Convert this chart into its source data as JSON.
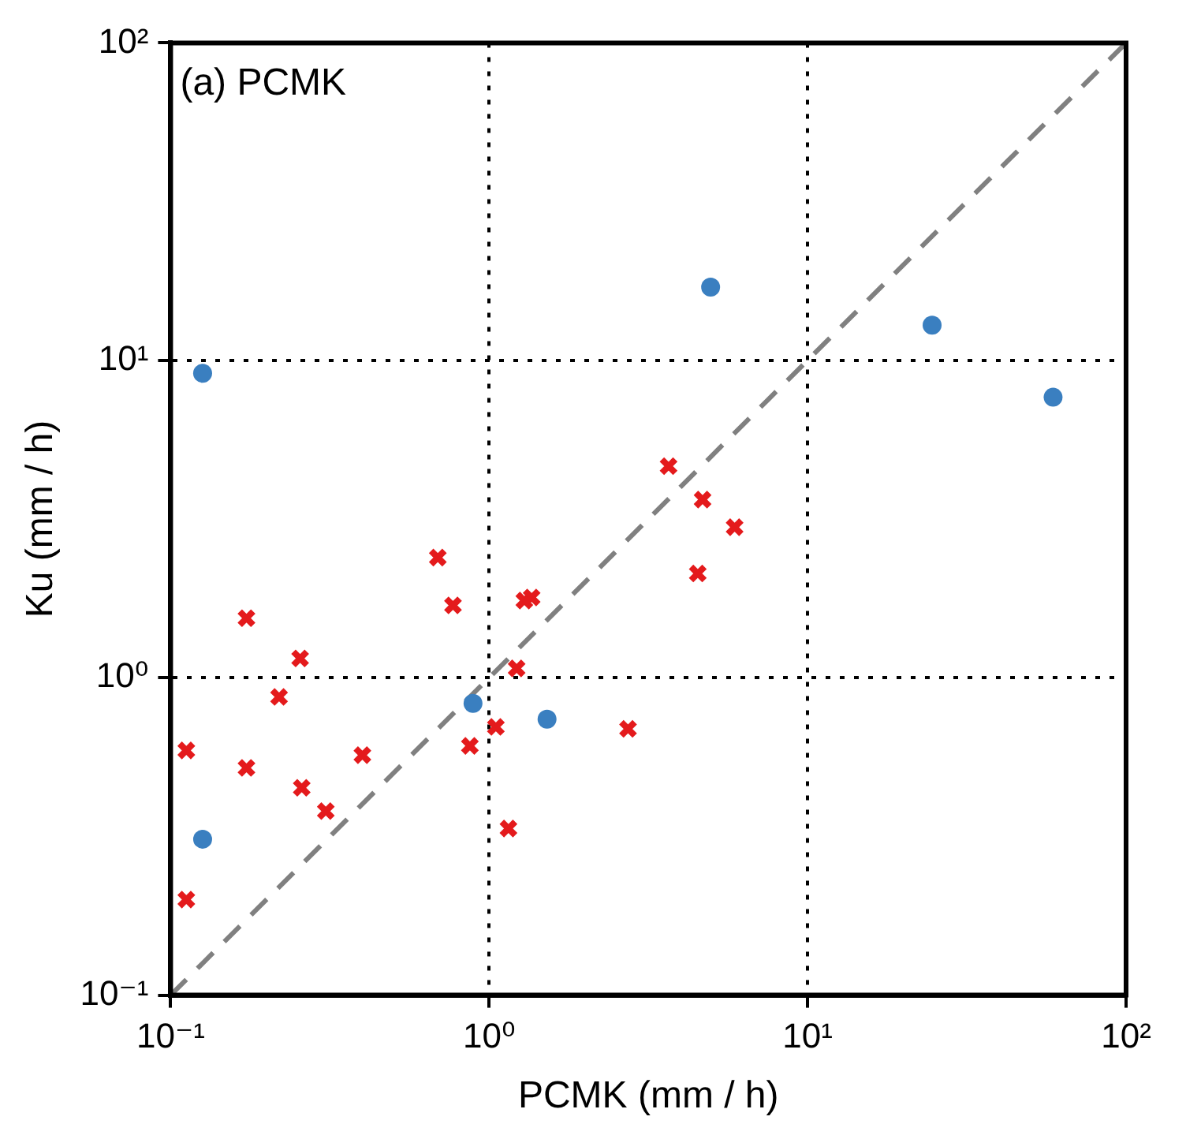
{
  "chart_data": {
    "type": "scatter",
    "xlabel": "PCMK (mm / h)",
    "ylabel": "Ku (mm / h)",
    "log": "xy",
    "grid": true,
    "legend": false,
    "xlim": [
      0.1,
      100
    ],
    "ylim": [
      0.1,
      100
    ],
    "xticks": [
      {
        "value": 0.1,
        "label": "10⁻¹"
      },
      {
        "value": 1,
        "label": "10⁰"
      },
      {
        "value": 10,
        "label": "10¹"
      },
      {
        "value": 100,
        "label": "10²"
      }
    ],
    "yticks": [
      {
        "value": 0.1,
        "label": "10⁻¹"
      },
      {
        "value": 1,
        "label": "10⁰"
      },
      {
        "value": 10,
        "label": "10¹"
      },
      {
        "value": 100,
        "label": "10²"
      }
    ],
    "annotations": [
      "(a) PCMK"
    ],
    "series": [
      {
        "type": "line",
        "color": "#808080",
        "line_style": "dashed",
        "marker": "none",
        "x": [
          0.1,
          100
        ],
        "values": [
          0.1,
          100
        ]
      },
      {
        "color": "#3a7fc0",
        "marker": "circle",
        "x": [
          0.126,
          4.96,
          24.6,
          59,
          0.89,
          1.52,
          0.126
        ],
        "values": [
          9.1,
          17,
          12.9,
          7.65,
          0.83,
          0.74,
          0.31
        ]
      },
      {
        "color": "#e41a1c",
        "marker": "cross",
        "x": [
          0.112,
          0.112,
          0.173,
          0.258,
          0.307,
          0.4,
          0.255,
          0.219,
          0.173,
          0.69,
          0.77,
          1.29,
          1.36,
          1.22,
          0.87,
          1.05,
          1.15,
          2.73,
          3.66,
          4.68,
          5.9,
          4.52
        ],
        "values": [
          0.2,
          0.59,
          0.52,
          0.45,
          0.38,
          0.57,
          1.15,
          0.87,
          1.54,
          2.39,
          1.69,
          1.75,
          1.79,
          1.07,
          0.61,
          0.7,
          0.335,
          0.69,
          4.64,
          3.64,
          2.98,
          2.13
        ]
      }
    ]
  }
}
